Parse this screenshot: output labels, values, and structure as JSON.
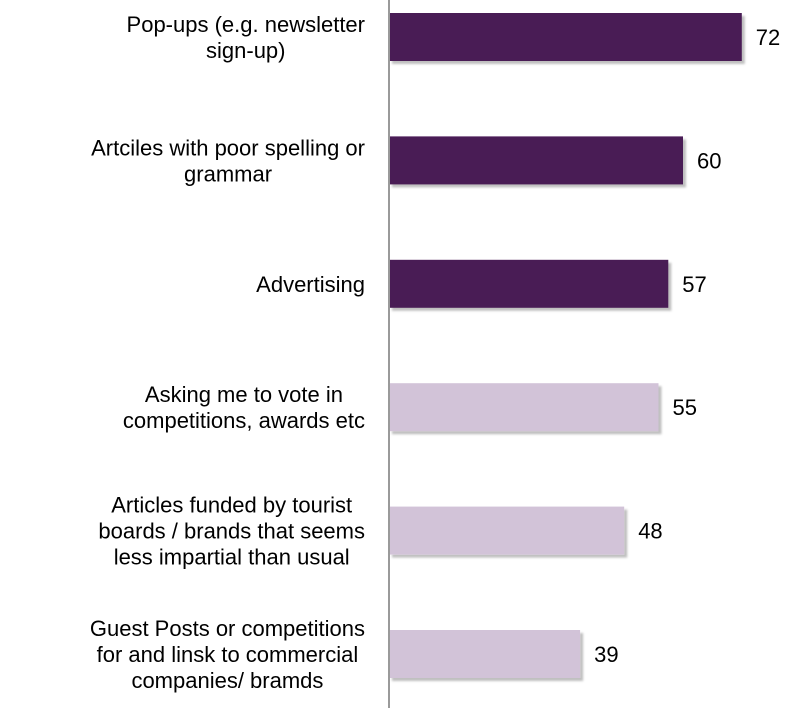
{
  "chart_data": {
    "type": "bar",
    "orientation": "horizontal",
    "categories": [
      [
        "Pop-ups (e.g. newsletter",
        "sign-up)"
      ],
      [
        "Artciles with poor spelling or",
        "grammar"
      ],
      [
        "Advertising"
      ],
      [
        "Asking me to vote in",
        "competitions, awards etc"
      ],
      [
        "Articles funded by tourist",
        "boards / brands that seems",
        "less impartial than usual"
      ],
      [
        "Guest Posts or competitions",
        "for and linsk to commercial",
        "companies/ bramds"
      ]
    ],
    "values": [
      72,
      60,
      57,
      55,
      48,
      39
    ],
    "value_labels": [
      "72",
      "60",
      "57",
      "55",
      "48",
      "39"
    ],
    "bar_colors": [
      "#4a1d55",
      "#4a1d55",
      "#4a1d55",
      "#d2c3d8",
      "#d2c3d8",
      "#d2c3d8"
    ],
    "axis_color": "#9a9a9a",
    "xlim": [
      0,
      100
    ],
    "grid": false,
    "legend": "none",
    "title": "",
    "xlabel": "",
    "ylabel": ""
  }
}
